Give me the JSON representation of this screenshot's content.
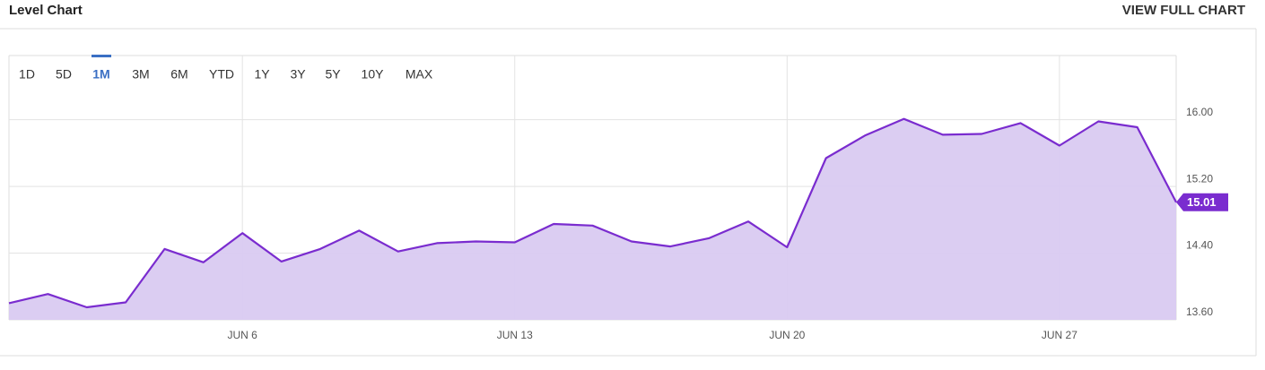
{
  "header": {
    "title": "Level Chart",
    "action": "VIEW FULL CHART"
  },
  "ranges": [
    "1D",
    "5D",
    "1M",
    "3M",
    "6M",
    "YTD",
    "1Y",
    "3Y",
    "5Y",
    "10Y",
    "MAX"
  ],
  "active_range": "1M",
  "chart_data": {
    "type": "line",
    "categories": [
      null,
      null,
      null,
      null,
      null,
      null,
      "JUN 6",
      null,
      null,
      null,
      null,
      null,
      null,
      "JUN 13",
      null,
      null,
      null,
      null,
      null,
      null,
      "JUN 20",
      null,
      null,
      null,
      null,
      null,
      null,
      "JUN 27",
      null,
      null,
      null
    ],
    "values": [
      13.8,
      13.91,
      13.75,
      13.81,
      14.45,
      14.29,
      14.64,
      14.3,
      14.45,
      14.67,
      14.42,
      14.52,
      14.54,
      14.53,
      14.75,
      14.73,
      14.54,
      14.48,
      14.58,
      14.78,
      14.47,
      15.54,
      15.81,
      16.01,
      15.82,
      15.83,
      15.96,
      15.69,
      15.98,
      15.91,
      15.01
    ],
    "color": "#7a2ccf",
    "fill_color": "#d9caf1",
    "ylim": [
      13.6,
      16.77
    ],
    "yticks": [
      {
        "value": 13.6,
        "label": "13.60"
      },
      {
        "value": 14.4,
        "label": "14.40"
      },
      {
        "value": 15.2,
        "label": "15.20"
      },
      {
        "value": 16.0,
        "label": "16.00"
      }
    ],
    "grid": true
  }
}
